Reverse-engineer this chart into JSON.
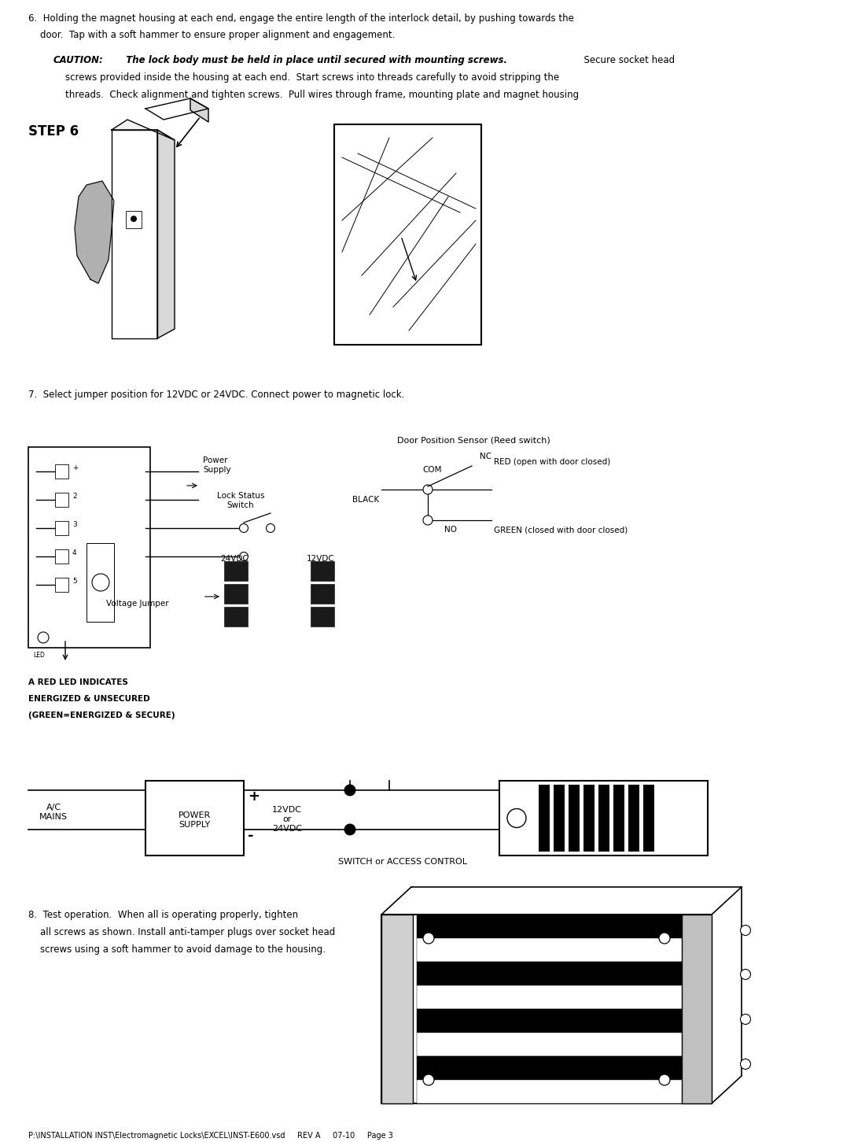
{
  "page_width": 10.72,
  "page_height": 14.51,
  "dpi": 100,
  "background": "#ffffff",
  "footer_text": "P:\\INSTALLATION INST\\Electromagnetic Locks\\EXCEL\\INST-E600.vsd     REV A     07-10     Page 3",
  "para6_line1": "6.  Holding the magnet housing at each end, engage the entire length of the interlock detail, by pushing towards the",
  "para6_line2": "    door.  Tap with a soft hammer to ensure proper alignment and engagement.",
  "caution_label": "CAUTION:",
  "caution_bold_text": "  The lock body must be held in place until secured with mounting screws.",
  "caution_rest": "  Secure socket head",
  "caution_line2": "    screws provided inside the housing at each end.  Start screws into threads carefully to avoid stripping the",
  "caution_line3": "    threads.  Check alignment and tighten screws.  Pull wires through frame, mounting plate and magnet housing",
  "step6_label": "STEP 6",
  "para7": "7.  Select jumper position for 12VDC or 24VDC. Connect power to magnetic lock.",
  "power_supply_label": "Power\nSupply",
  "lock_status_label": "Lock Status\nSwitch",
  "door_sensor_label": "Door Position Sensor (Reed switch)",
  "com_label": "COM",
  "nc_label": "NC",
  "no_label": "NO",
  "black_label": "BLACK",
  "red_label": "RED (open with door closed)",
  "green_label": "GREEN (closed with door closed)",
  "voltage_jumper_label": "Voltage Jumper",
  "v24_label": "24VDC",
  "v12_label": "12VDC",
  "red_led_line1": "A RED LED INDICATES",
  "red_led_line2": "ENERGIZED & UNSECURED",
  "red_led_line3": "(GREEN=ENERGIZED & SECURE)",
  "ac_mains_label": "A/C\nMAINS",
  "power_supply_box_label": "POWER\nSUPPLY",
  "voltage_label": "12VDC\nor\n24VDC",
  "switch_label": "SWITCH or ACCESS CONTROL",
  "plus_label": "+",
  "minus_label": "-",
  "para8_line1": "8.  Test operation.  When all is operating properly, tighten",
  "para8_line2": "    all screws as shown. Install anti-tamper plugs over socket head",
  "para8_line3": "    screws using a soft hammer to avoid damage to the housing."
}
